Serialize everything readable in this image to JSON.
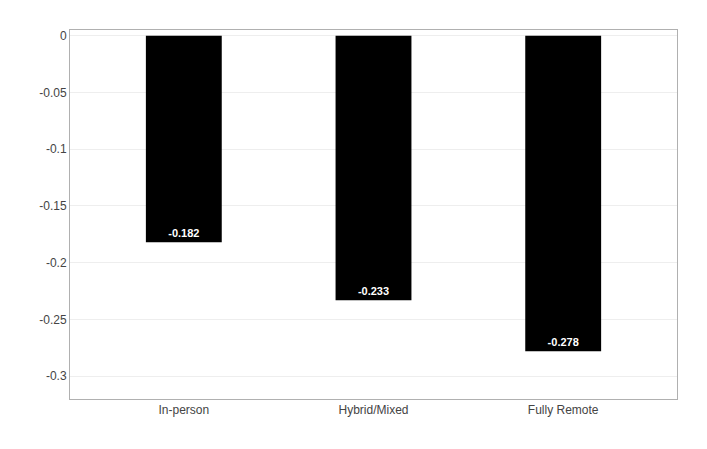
{
  "chart_data": {
    "type": "bar",
    "categories": [
      "In-person",
      "Hybrid/Mixed",
      "Fully Remote"
    ],
    "values": [
      -0.182,
      -0.233,
      -0.278
    ],
    "color": "#000000",
    "ylim": [
      -0.32,
      0.005
    ],
    "yticks": [
      0,
      -0.05,
      -0.1,
      -0.15,
      -0.2,
      -0.25,
      -0.3
    ],
    "grid": true,
    "data_labels": true
  }
}
